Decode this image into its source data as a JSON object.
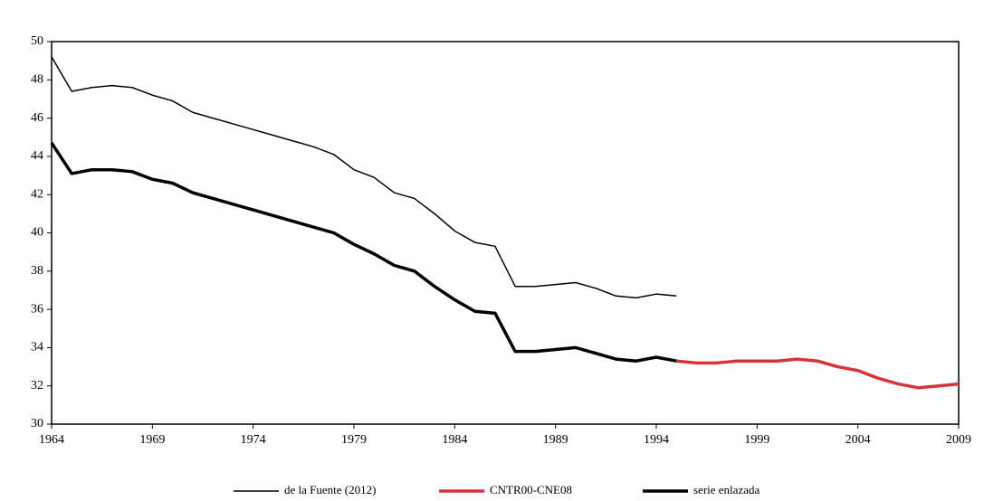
{
  "chart_data": {
    "type": "line",
    "x": [
      1964,
      1965,
      1966,
      1967,
      1968,
      1969,
      1970,
      1971,
      1972,
      1973,
      1974,
      1975,
      1976,
      1977,
      1978,
      1979,
      1980,
      1981,
      1982,
      1983,
      1984,
      1985,
      1986,
      1987,
      1988,
      1989,
      1990,
      1991,
      1992,
      1993,
      1994,
      1995,
      1996,
      1997,
      1998,
      1999,
      2000,
      2001,
      2002,
      2003,
      2004,
      2005,
      2006,
      2007,
      2008,
      2009
    ],
    "series": [
      {
        "name": "de la Fuente (2012)",
        "color": "#000000",
        "width": 1.5,
        "values": [
          49.2,
          47.4,
          47.6,
          47.7,
          47.6,
          47.2,
          46.9,
          46.3,
          46.0,
          45.7,
          45.4,
          45.1,
          44.8,
          44.5,
          44.1,
          43.3,
          42.9,
          42.1,
          41.8,
          41.0,
          40.1,
          39.5,
          39.3,
          37.2,
          37.2,
          37.3,
          37.4,
          37.1,
          36.7,
          36.6,
          36.8,
          36.7,
          null,
          null,
          null,
          null,
          null,
          null,
          null,
          null,
          null,
          null,
          null,
          null,
          null,
          null
        ]
      },
      {
        "name": "CNTR00-CNE08",
        "color": "#d9333a",
        "width": 3.5,
        "values": [
          null,
          null,
          null,
          null,
          null,
          null,
          null,
          null,
          null,
          null,
          null,
          null,
          null,
          null,
          null,
          null,
          null,
          null,
          null,
          null,
          null,
          null,
          null,
          null,
          null,
          null,
          null,
          null,
          null,
          null,
          null,
          33.3,
          33.2,
          33.2,
          33.3,
          33.3,
          33.3,
          33.4,
          33.3,
          33.0,
          32.8,
          32.4,
          32.1,
          31.9,
          32.0,
          32.1
        ]
      },
      {
        "name": "serie enlazada",
        "color": "#000000",
        "width": 3.5,
        "values": [
          44.7,
          43.1,
          43.3,
          43.3,
          43.2,
          42.8,
          42.6,
          42.1,
          41.8,
          41.5,
          41.2,
          40.9,
          40.6,
          40.3,
          40.0,
          39.4,
          38.9,
          38.3,
          38.0,
          37.2,
          36.5,
          35.9,
          35.8,
          33.8,
          33.8,
          33.9,
          34.0,
          33.7,
          33.4,
          33.3,
          33.5,
          33.3,
          null,
          null,
          null,
          null,
          null,
          null,
          null,
          null,
          null,
          null,
          null,
          null,
          null,
          null
        ]
      }
    ],
    "xlim": [
      1964,
      2009
    ],
    "xticks": [
      1964,
      1969,
      1974,
      1979,
      1984,
      1989,
      1994,
      1999,
      2004,
      2009
    ],
    "ylim": [
      30,
      50
    ],
    "yticks": [
      30,
      32,
      34,
      36,
      38,
      40,
      42,
      44,
      46,
      48,
      50
    ],
    "legend": "bottom"
  }
}
